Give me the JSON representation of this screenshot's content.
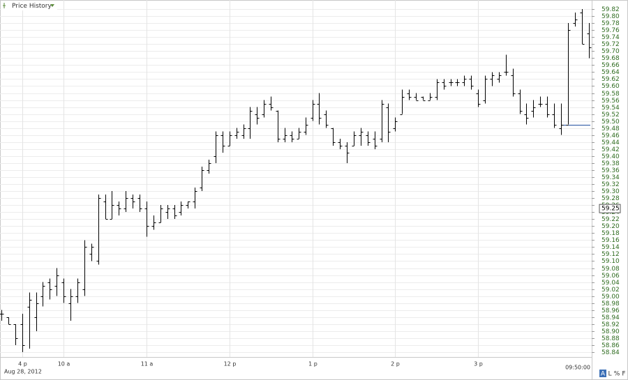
{
  "chart_data": {
    "type": "ohlc",
    "title": "Price History",
    "date_label": "Aug 28, 2012",
    "time_label": "09:50:00",
    "buttons": [
      "A",
      "L",
      "%",
      "F"
    ],
    "color": "#000000",
    "reference_color": "#1f4e9e",
    "reference_line": 59.49,
    "price_marker": 59.25,
    "grid": true,
    "ylim": [
      58.83,
      59.83
    ],
    "yticks": [
      58.84,
      58.86,
      58.88,
      {
        "value": 58.9,
        "label": "58.90"
      },
      58.92,
      58.94,
      58.96,
      58.98,
      {
        "value": 59,
        "label": "59.00"
      },
      59.02,
      59.04,
      59.06,
      59.08,
      {
        "value": 59.1,
        "label": "59.10"
      },
      59.12,
      59.14,
      59.16,
      59.18,
      {
        "value": 59.2,
        "label": "59.20"
      },
      59.22,
      59.24,
      59.26,
      59.28,
      {
        "value": 59.3,
        "label": "59.30"
      },
      59.32,
      59.34,
      59.36,
      59.38,
      {
        "value": 59.4,
        "label": "59.40"
      },
      59.42,
      59.44,
      59.46,
      59.48,
      {
        "value": 59.5,
        "label": "59.50"
      },
      59.52,
      59.54,
      59.56,
      59.58,
      {
        "value": 59.6,
        "label": "59.60"
      },
      59.62,
      59.64,
      59.66,
      59.68,
      {
        "value": 59.7,
        "label": "59.70"
      },
      59.72,
      59.74,
      59.76,
      59.78,
      {
        "value": 59.8,
        "label": "59.80"
      },
      59.82
    ],
    "categories": [
      null,
      null,
      null,
      "4 p",
      null,
      null,
      null,
      null,
      null,
      "10 a",
      null,
      null,
      null,
      null,
      null,
      null,
      null,
      null,
      null,
      null,
      null,
      "11 a",
      null,
      null,
      null,
      null,
      null,
      null,
      null,
      null,
      null,
      null,
      null,
      "12 p",
      null,
      null,
      null,
      null,
      null,
      null,
      null,
      null,
      null,
      null,
      null,
      "1 p",
      null,
      null,
      null,
      null,
      null,
      null,
      null,
      null,
      null,
      null,
      null,
      "2 p",
      null,
      null,
      null,
      null,
      null,
      null,
      null,
      null,
      null,
      null,
      null,
      "3 p",
      null,
      null,
      null,
      null,
      null,
      null,
      null,
      null,
      null,
      null,
      null,
      null,
      null,
      null,
      null,
      null
    ],
    "open": [
      58.95,
      58.94,
      58.92,
      58.92,
      58.97,
      58.94,
      59.0,
      59.04,
      59.03,
      59.04,
      58.98,
      59.0,
      59.02,
      59.12,
      59.1,
      59.27,
      59.22,
      59.26,
      59.25,
      59.28,
      59.28,
      59.25,
      59.2,
      59.21,
      59.24,
      59.25,
      59.24,
      59.26,
      59.27,
      59.31,
      59.36,
      59.4,
      59.46,
      59.43,
      59.46,
      59.46,
      59.48,
      59.52,
      59.52,
      59.55,
      59.53,
      59.45,
      59.46,
      59.45,
      59.47,
      59.51,
      59.55,
      59.52,
      59.48,
      59.44,
      59.43,
      59.43,
      59.46,
      59.46,
      59.45,
      59.45,
      59.54,
      59.48,
      59.52,
      59.58,
      59.57,
      59.57,
      59.56,
      59.57,
      59.61,
      59.61,
      59.61,
      59.61,
      59.62,
      59.58,
      59.56,
      59.62,
      59.62,
      59.64,
      59.63,
      59.58,
      59.52,
      59.53,
      59.55,
      59.55,
      59.52,
      59.48,
      59.49,
      59.78,
      59.81,
      59.75
    ],
    "high": [
      58.96,
      58.94,
      58.92,
      58.95,
      59.01,
      59.01,
      59.04,
      59.05,
      59.08,
      59.05,
      59.02,
      59.05,
      59.16,
      59.15,
      59.29,
      59.29,
      59.3,
      59.27,
      59.3,
      59.29,
      59.29,
      59.27,
      59.23,
      59.26,
      59.26,
      59.26,
      59.27,
      59.27,
      59.31,
      59.37,
      59.39,
      59.47,
      59.47,
      59.47,
      59.48,
      59.49,
      59.54,
      59.54,
      59.56,
      59.57,
      59.53,
      59.48,
      59.47,
      59.48,
      59.51,
      59.56,
      59.58,
      59.53,
      59.48,
      59.45,
      59.44,
      59.47,
      59.48,
      59.47,
      59.47,
      59.56,
      59.55,
      59.51,
      59.59,
      59.59,
      59.58,
      59.57,
      59.58,
      59.62,
      59.62,
      59.62,
      59.62,
      59.63,
      59.63,
      59.59,
      59.63,
      59.64,
      59.64,
      59.69,
      59.65,
      59.59,
      59.55,
      59.56,
      59.57,
      59.57,
      59.55,
      59.55,
      59.78,
      59.81,
      59.82,
      59.78
    ],
    "low": [
      58.93,
      58.92,
      58.86,
      58.84,
      58.85,
      58.9,
      58.97,
      58.99,
      59.0,
      58.98,
      58.93,
      58.98,
      59.0,
      59.1,
      59.09,
      59.22,
      59.22,
      59.23,
      59.24,
      59.25,
      59.24,
      59.17,
      59.19,
      59.21,
      59.22,
      59.22,
      59.23,
      59.25,
      59.25,
      59.3,
      59.35,
      59.38,
      59.41,
      59.43,
      59.45,
      59.45,
      59.45,
      59.49,
      59.51,
      59.53,
      59.44,
      59.44,
      59.44,
      59.45,
      59.46,
      59.5,
      59.49,
      59.48,
      59.43,
      59.42,
      59.38,
      59.43,
      59.43,
      59.43,
      59.42,
      59.44,
      59.44,
      59.47,
      59.52,
      59.56,
      59.56,
      59.56,
      59.56,
      59.56,
      59.59,
      59.6,
      59.6,
      59.6,
      59.59,
      59.54,
      59.55,
      59.6,
      59.61,
      59.63,
      59.57,
      59.52,
      59.49,
      59.51,
      59.54,
      59.51,
      59.48,
      59.46,
      59.49,
      59.77,
      59.72,
      59.68
    ],
    "close": [
      58.95,
      58.92,
      58.88,
      58.86,
      58.99,
      58.98,
      59.03,
      59.02,
      59.06,
      59.0,
      59.0,
      59.04,
      59.14,
      59.14,
      59.28,
      59.22,
      59.26,
      59.25,
      59.28,
      59.27,
      59.25,
      59.2,
      59.21,
      59.25,
      59.25,
      59.23,
      59.26,
      59.27,
      59.3,
      59.36,
      59.38,
      59.46,
      59.43,
      59.46,
      59.47,
      59.48,
      59.53,
      59.51,
      59.55,
      59.54,
      59.45,
      59.46,
      59.45,
      59.47,
      59.49,
      59.55,
      59.51,
      59.49,
      59.44,
      59.43,
      59.41,
      59.46,
      59.47,
      59.44,
      59.43,
      59.55,
      59.47,
      59.5,
      59.57,
      59.57,
      59.56,
      59.56,
      59.57,
      59.61,
      59.6,
      59.61,
      59.61,
      59.62,
      59.6,
      59.55,
      59.62,
      59.63,
      59.63,
      59.64,
      59.58,
      59.53,
      59.51,
      59.54,
      59.55,
      59.52,
      59.49,
      59.49,
      59.76,
      59.79,
      59.72,
      59.71
    ]
  }
}
